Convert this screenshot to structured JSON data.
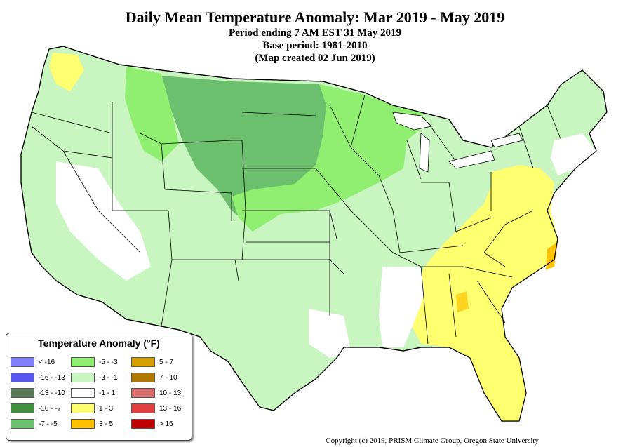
{
  "header": {
    "title": "Daily Mean Temperature Anomaly: Mar 2019 - May 2019",
    "line1": "Period ending 7 AM EST 31 May 2019",
    "line2": "Base period: 1981-2010",
    "line3": "(Map created 02 Jun 2019)"
  },
  "legend": {
    "title": "Temperature Anomaly (°F)",
    "items": [
      {
        "label": "< -16",
        "color": "#8080ff"
      },
      {
        "label": "-16 - -13",
        "color": "#5858f0"
      },
      {
        "label": "-13 - -10",
        "color": "#5a7a5a"
      },
      {
        "label": "-10 - -7",
        "color": "#3f8f3f"
      },
      {
        "label": "-7 - -5",
        "color": "#6cbf6c"
      },
      {
        "label": "-5 - -3",
        "color": "#90ee70"
      },
      {
        "label": "-3 - -1",
        "color": "#c8f5c0"
      },
      {
        "label": "-1 - 1",
        "color": "#ffffff"
      },
      {
        "label": "1 - 3",
        "color": "#ffff70"
      },
      {
        "label": "3 - 5",
        "color": "#ffc000"
      },
      {
        "label": "5 - 7",
        "color": "#d4a000"
      },
      {
        "label": "7 - 10",
        "color": "#b07800"
      },
      {
        "label": "10 - 13",
        "color": "#d87070"
      },
      {
        "label": "13 - 16",
        "color": "#e04040"
      },
      {
        "label": "> 16",
        "color": "#c00000"
      }
    ]
  },
  "copyright": "Copyright (c) 2019, PRISM Climate Group, Oregon State University"
}
